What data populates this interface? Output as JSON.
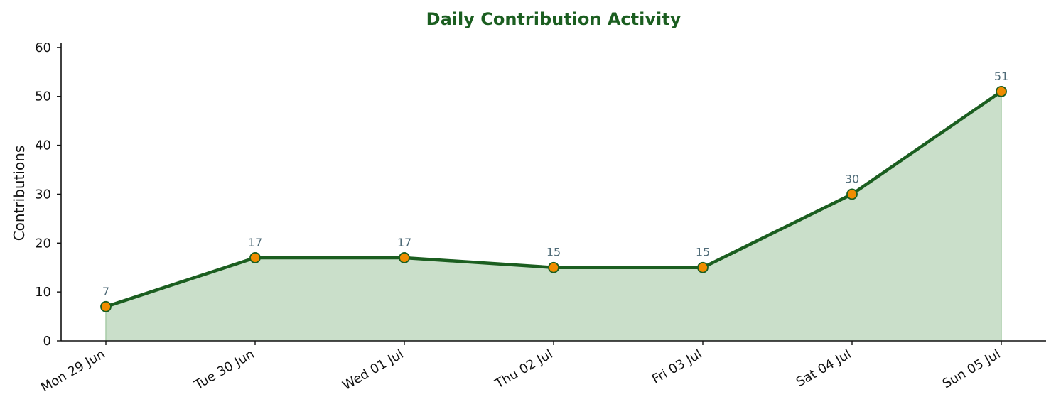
{
  "chart_data": {
    "type": "area",
    "title": "Daily Contribution Activity",
    "xlabel": "",
    "ylabel": "Contributions",
    "categories": [
      "Mon 29 Jun",
      "Tue 30 Jun",
      "Wed 01 Jul",
      "Thu 02 Jul",
      "Fri 03 Jul",
      "Sat 04 Jul",
      "Sun 05 Jul"
    ],
    "series": [
      {
        "values": [
          7,
          17,
          17,
          15,
          15,
          30,
          51
        ]
      }
    ],
    "data_labels": [
      "7",
      "17",
      "17",
      "15",
      "15",
      "30",
      "51"
    ],
    "ylim": [
      0,
      61
    ],
    "yticks": [
      0,
      10,
      20,
      30,
      40,
      50,
      60
    ],
    "grid": false,
    "markers": true,
    "colors": {
      "title": "#1b5e20",
      "line": "#1b5e20",
      "fill": "#cadfca",
      "marker_fill": "#f08c00",
      "marker_edge": "#1b5e20",
      "data_label": "#4f6b78",
      "axis": "#111111"
    }
  }
}
